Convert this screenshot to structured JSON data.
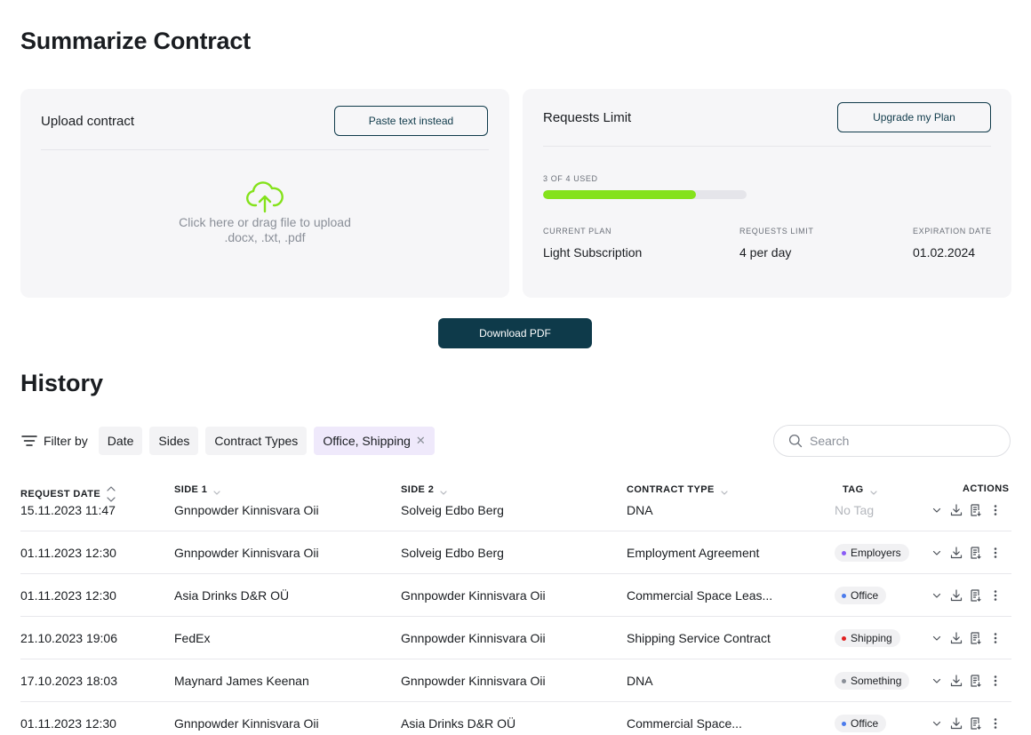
{
  "page": {
    "title": "Summarize Contract"
  },
  "upload": {
    "title": "Upload contract",
    "paste_label": "Paste text instead",
    "prompt": "Click here or drag file to upload",
    "formats": ".docx, .txt, .pdf"
  },
  "limit": {
    "title": "Requests Limit",
    "upgrade_label": "Upgrade my Plan",
    "used_label": "3 OF 4 USED",
    "used": 3,
    "total": 4,
    "plan_label": "CURRENT PLAN",
    "plan_value": "Light Subscription",
    "limit_label": "REQUESTS LIMIT",
    "limit_value": "4 per day",
    "expiry_label": "EXPIRATION DATE",
    "expiry_value": "01.02.2024"
  },
  "download_label": "Download PDF",
  "history": {
    "title": "History",
    "filter_label": "Filter by",
    "filters": [
      "Date",
      "Sides",
      "Contract Types"
    ],
    "active_filter": "Office, Shipping",
    "search_placeholder": "Search",
    "columns": {
      "date": "REQUEST DATE",
      "side1": "SIDE 1",
      "side2": "SIDE 2",
      "type": "CONTRACT TYPE",
      "tag": "TAG",
      "actions": "ACTIONS"
    },
    "rows": [
      {
        "date": "15.11.2023 11:47",
        "side1": "Gnnpowder Kinnisvara Oii",
        "side2": "Solveig Edbo Berg",
        "type": "DNA",
        "tag": "No Tag",
        "tag_color": ""
      },
      {
        "date": "01.11.2023 12:30",
        "side1": "Gnnpowder Kinnisvara Oii",
        "side2": "Solveig Edbo Berg",
        "type": "Employment Agreement",
        "tag": "Employers",
        "tag_color": "#8a5cf6"
      },
      {
        "date": "01.11.2023 12:30",
        "side1": "Asia Drinks D&R OÜ",
        "side2": "Gnnpowder Kinnisvara Oii",
        "type": "Commercial Space Leas...",
        "tag": "Office",
        "tag_color": "#4b7bec"
      },
      {
        "date": "21.10.2023 19:06",
        "side1": "FedEx",
        "side2": "Gnnpowder Kinnisvara Oii",
        "type": "Shipping Service Contract",
        "tag": "Shipping",
        "tag_color": "#e02020"
      },
      {
        "date": "17.10.2023 18:03",
        "side1": "Maynard James Keenan",
        "side2": "Gnnpowder Kinnisvara Oii",
        "type": "DNA",
        "tag": "Something",
        "tag_color": "#8a8f98"
      },
      {
        "date": "01.11.2023 12:30",
        "side1": "Gnnpowder Kinnisvara Oii",
        "side2": "Asia Drinks D&R OÜ",
        "type": "Commercial Space...",
        "tag": "Office",
        "tag_color": "#4b7bec"
      }
    ]
  },
  "colors": {
    "accent": "#0e3a4a",
    "progress": "#84e21b",
    "upload_icon": "#84e21b"
  },
  "icons": [
    "upload-cloud-icon",
    "filter-icon",
    "close-icon",
    "search-icon",
    "sort-icon",
    "chevron-down-icon",
    "download-icon",
    "document-icon",
    "more-icon"
  ]
}
